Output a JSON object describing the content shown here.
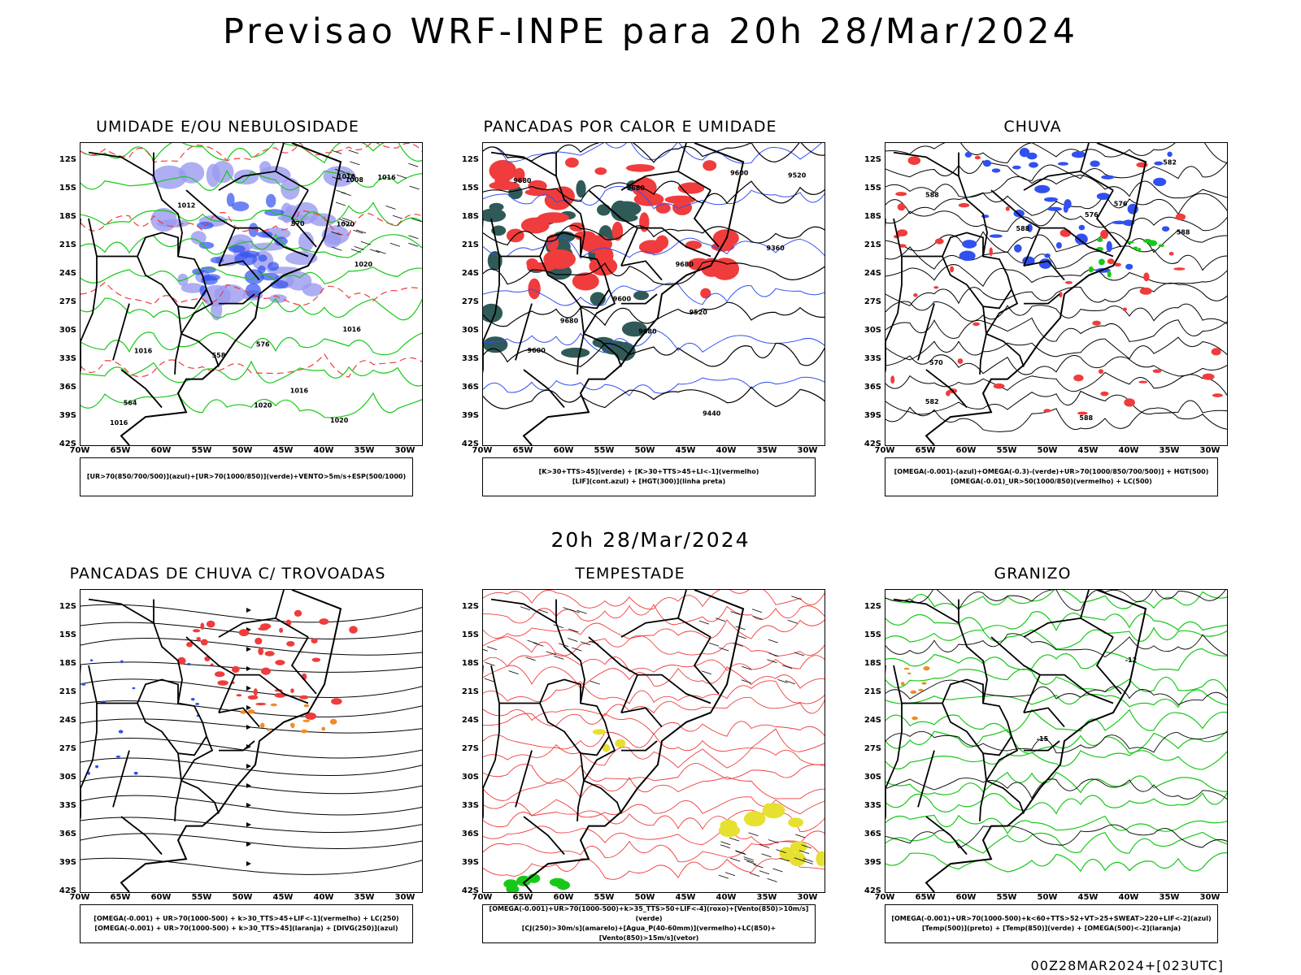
{
  "title": "Previsao WRF-INPE  para 20h 28/Mar/2024",
  "mid_date": "20h 28/Mar/2024",
  "footer": "00Z28MAR2024+[023UTC]",
  "lat_labels": [
    "12S",
    "15S",
    "18S",
    "21S",
    "24S",
    "27S",
    "30S",
    "33S",
    "36S",
    "39S",
    "42S"
  ],
  "lon_labels": [
    "70W",
    "65W",
    "60W",
    "55W",
    "50W",
    "45W",
    "40W",
    "35W",
    "30W"
  ],
  "panels": [
    {
      "title": "UMIDADE E/OU NEBULOSIDADE",
      "legend": [
        "[UR>70(850/700/500)](azul)+[UR>70(1000/850)](verde)+VENTO>5m/s+ESP(500/1000)"
      ],
      "labels": [
        "1008",
        "1012",
        "1016",
        "1016",
        "1020",
        "1020",
        "1016",
        "1020",
        "1016",
        "1016",
        "576",
        "570",
        "564",
        "558",
        "1020",
        "1016"
      ]
    },
    {
      "title": "PANCADAS POR CALOR E UMIDADE",
      "legend": [
        "[K>30+TTS>45](verde) + [K>30+TTS>45+LI<-1](vermelho)",
        "[LIF](cont.azul) + [HGT(300)](linha preta)"
      ],
      "labels": [
        "9680",
        "9680",
        "9680",
        "9680",
        "9680",
        "9600",
        "9520",
        "9600",
        "9520",
        "9440",
        "9360",
        "9600"
      ]
    },
    {
      "title": "CHUVA",
      "legend": [
        "[OMEGA(-0.001)-(azul)+OMEGA(-0.3)-(verde)+UR>70(1000/850/700/500)] + HGT(500)",
        "[OMEGA(-0.01)_UR>50(1000/850)(vermelho) + LC(500)"
      ],
      "labels": [
        "588",
        "588",
        "588",
        "582",
        "582",
        "576",
        "576",
        "570",
        "588"
      ]
    },
    {
      "title": "PANCADAS DE CHUVA C/ TROVOADAS",
      "legend": [
        "[OMEGA(-0.001) + UR>70(1000-500) + k>30_TTS>45+LIF<-1](vermelho) + LC(250)",
        "[OMEGA(-0.001) + UR>70(1000-500) + k>30_TTS>45](laranja) + [DIVG(250)](azul)"
      ],
      "labels": []
    },
    {
      "title": "TEMPESTADE",
      "legend": [
        "[OMEGA(-0.001)+UR>70(1000-500)+k>35_TTS>50+LIF<-4](roxo)+[Vento(850)>10m/s](verde)",
        "[CJ(250)>30m/s](amarelo)+[Agua_P(40-60mm)](vermelho)+LC(850)+[Vento(850)>15m/s](vetor)"
      ],
      "labels": []
    },
    {
      "title": "GRANIZO",
      "legend": [
        "[OMEGA(-0.001)+UR>70(1000-500)+k<60+TTS>52+VT>25+SWEAT>220+LIF<-2](azul)",
        "[Temp(500)](preto) + [Temp(850)](verde) + [OMEGA(500)<-2](laranja)"
      ],
      "labels": [
        "-12",
        "-15"
      ]
    }
  ],
  "colors": {
    "red": "#f03c3c",
    "blue": "#3050f0",
    "green": "#18c818",
    "lavender": "#9a9af0",
    "darkteal": "#2f5a58",
    "yellow": "#e6e030",
    "orange": "#f08c28"
  }
}
